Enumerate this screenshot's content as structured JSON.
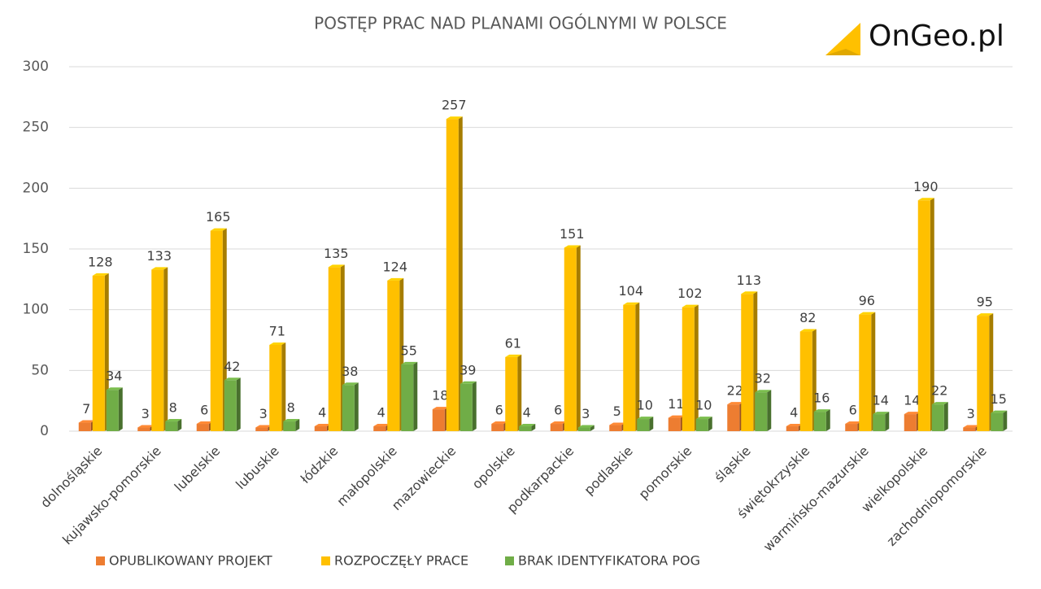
{
  "logo": "OnGeo.pl",
  "chart_data": {
    "type": "bar3d",
    "title": "POSTĘP PRAC NAD PLANAMI OGÓLNYMI W POLSCE",
    "categories": [
      "dolnośląskie",
      "kujawsko-pomorskie",
      "lubelskie",
      "lubuskie",
      "łódzkie",
      "małopolskie",
      "mazowieckie",
      "opolskie",
      "podkarpackie",
      "podlaskie",
      "pomorskie",
      "śląskie",
      "świętokrzyskie",
      "warmińsko-mazurskie",
      "wielkopolskie",
      "zachodniopomorskie"
    ],
    "series": [
      {
        "name": "OPUBLIKOWANY PROJEKT",
        "color": "#ED7D31",
        "values": [
          7,
          3,
          6,
          3,
          4,
          4,
          18,
          6,
          6,
          5,
          11,
          22,
          4,
          6,
          14,
          3
        ]
      },
      {
        "name": "ROZPOCZĘŁY PRACE",
        "color": "#FFC000",
        "values": [
          128,
          133,
          165,
          71,
          135,
          124,
          257,
          61,
          151,
          104,
          102,
          113,
          82,
          96,
          190,
          95
        ]
      },
      {
        "name": "BRAK IDENTYFIKATORA POG",
        "color": "#70AD47",
        "values": [
          34,
          8,
          42,
          8,
          38,
          55,
          39,
          4,
          3,
          10,
          10,
          32,
          16,
          14,
          22,
          15
        ]
      }
    ],
    "ylim": [
      0,
      300
    ],
    "yticks": [
      0,
      50,
      100,
      150,
      200,
      250,
      300
    ],
    "grid": true,
    "legend": "bottom"
  }
}
